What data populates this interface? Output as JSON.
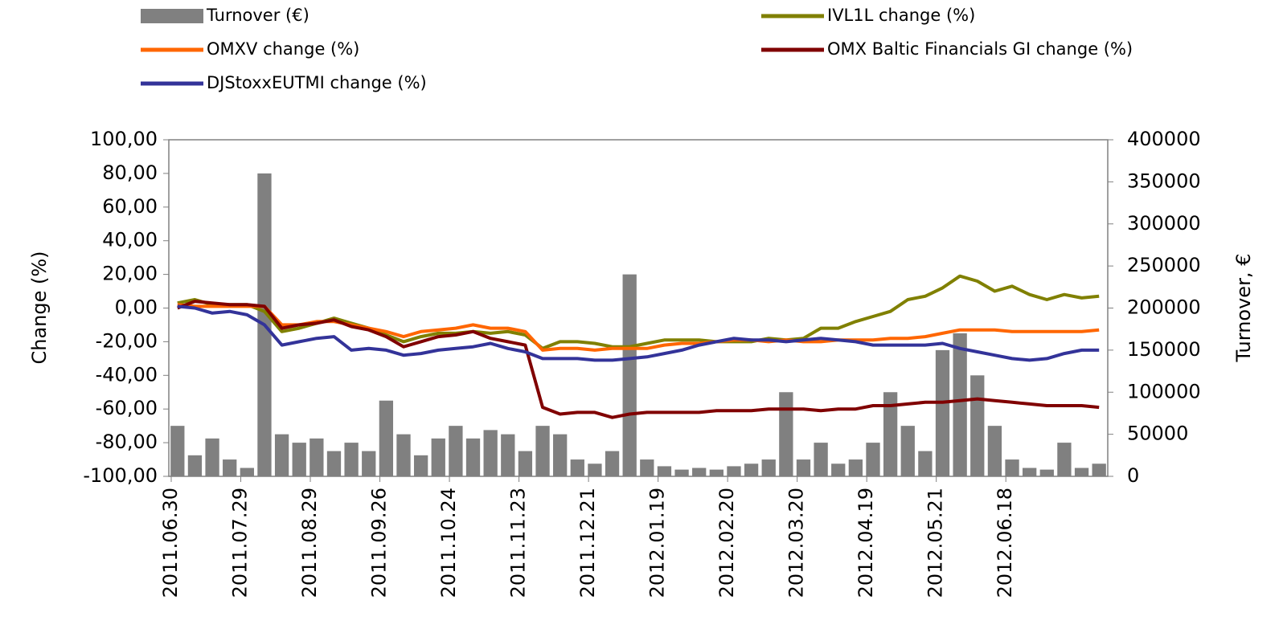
{
  "chart_data": {
    "type": "bar-line",
    "y_label": "Change (%)",
    "y2_label": "Turnover, €",
    "categories": [
      "2011.06.30",
      null,
      null,
      null,
      "2011.07.29",
      null,
      null,
      null,
      "2011.08.29",
      null,
      null,
      null,
      "2011.09.26",
      null,
      null,
      null,
      "2011.10.24",
      null,
      null,
      null,
      "2011.11.23",
      null,
      null,
      null,
      "2011.12.21",
      null,
      null,
      null,
      "2012.01.19",
      null,
      null,
      null,
      "2012.02.20",
      null,
      null,
      null,
      "2012.03.20",
      null,
      null,
      null,
      "2012.04.19",
      null,
      null,
      null,
      "2012.05.21",
      null,
      null,
      null,
      "2012.06.18",
      null,
      null,
      null,
      null,
      null
    ],
    "ylim": [
      -100,
      100
    ],
    "yticks": [
      {
        "value": -100,
        "label": "-100,00"
      },
      {
        "value": -80,
        "label": "-80,00"
      },
      {
        "value": -60,
        "label": "-60,00"
      },
      {
        "value": -40,
        "label": "-40,00"
      },
      {
        "value": -20,
        "label": "-20,00"
      },
      {
        "value": 0,
        "label": "0,00"
      },
      {
        "value": 20,
        "label": "20,00"
      },
      {
        "value": 40,
        "label": "40,00"
      },
      {
        "value": 60,
        "label": "60,00"
      },
      {
        "value": 80,
        "label": "80,00"
      },
      {
        "value": 100,
        "label": "100,00"
      }
    ],
    "y2lim": [
      0,
      400000
    ],
    "y2ticks": [
      0,
      50000,
      100000,
      150000,
      200000,
      250000,
      300000,
      350000,
      400000
    ],
    "series": [
      {
        "name": "Turnover (€)",
        "type": "bar",
        "axis": "y2",
        "color": "#808080",
        "values": [
          60000,
          25000,
          45000,
          20000,
          10000,
          360000,
          50000,
          40000,
          45000,
          30000,
          40000,
          30000,
          90000,
          50000,
          25000,
          45000,
          60000,
          45000,
          55000,
          50000,
          30000,
          60000,
          50000,
          20000,
          15000,
          30000,
          240000,
          20000,
          12000,
          8000,
          10000,
          8000,
          12000,
          15000,
          20000,
          100000,
          20000,
          40000,
          15000,
          20000,
          40000,
          100000,
          60000,
          30000,
          150000,
          170000,
          120000,
          60000,
          20000,
          10000,
          8000,
          40000,
          10000,
          15000
        ]
      },
      {
        "name": "IVL1L change (%)",
        "type": "line",
        "color": "#808000",
        "values": [
          3,
          5,
          2,
          2,
          2,
          -2,
          -14,
          -12,
          -9,
          -6,
          -9,
          -12,
          -16,
          -20,
          -17,
          -15,
          -15,
          -14,
          -15,
          -14,
          -16,
          -24,
          -20,
          -20,
          -21,
          -23,
          -23,
          -21,
          -19,
          -19,
          -19,
          -20,
          -20,
          -20,
          -18,
          -19,
          -18,
          -12,
          -12,
          -8,
          -5,
          -2,
          5,
          7,
          12,
          19,
          16,
          10,
          13,
          8,
          5,
          8,
          6,
          7
        ]
      },
      {
        "name": "OMXV change (%)",
        "type": "line",
        "color": "#ff6600",
        "values": [
          2,
          1,
          1,
          1,
          1,
          1,
          -10,
          -10,
          -8,
          -8,
          -10,
          -12,
          -14,
          -17,
          -14,
          -13,
          -12,
          -10,
          -12,
          -12,
          -14,
          -25,
          -24,
          -24,
          -25,
          -24,
          -24,
          -24,
          -22,
          -21,
          -21,
          -20,
          -19,
          -19,
          -20,
          -19,
          -20,
          -20,
          -19,
          -19,
          -19,
          -18,
          -18,
          -17,
          -15,
          -13,
          -13,
          -13,
          -14,
          -14,
          -14,
          -14,
          -14,
          -13
        ]
      },
      {
        "name": "OMX Baltic Financials GI change (%)",
        "type": "line",
        "color": "#800000",
        "values": [
          0,
          4,
          3,
          2,
          2,
          1,
          -12,
          -10,
          -9,
          -7,
          -11,
          -13,
          -17,
          -23,
          -20,
          -17,
          -16,
          -14,
          -18,
          -20,
          -22,
          -59,
          -63,
          -62,
          -62,
          -65,
          -63,
          -62,
          -62,
          -62,
          -62,
          -61,
          -61,
          -61,
          -60,
          -60,
          -60,
          -61,
          -60,
          -60,
          -58,
          -58,
          -57,
          -56,
          -56,
          -55,
          -54,
          -55,
          -56,
          -57,
          -58,
          -58,
          -58,
          -59
        ]
      },
      {
        "name": "DJStoxxEUTMI change (%)",
        "type": "line",
        "color": "#333399",
        "values": [
          1,
          0,
          -3,
          -2,
          -4,
          -10,
          -22,
          -20,
          -18,
          -17,
          -25,
          -24,
          -25,
          -28,
          -27,
          -25,
          -24,
          -23,
          -21,
          -24,
          -26,
          -30,
          -30,
          -30,
          -31,
          -31,
          -30,
          -29,
          -27,
          -25,
          -22,
          -20,
          -18,
          -19,
          -19,
          -20,
          -19,
          -18,
          -19,
          -20,
          -22,
          -22,
          -22,
          -22,
          -21,
          -24,
          -26,
          -28,
          -30,
          -31,
          -30,
          -27,
          -25,
          -25
        ]
      }
    ]
  }
}
